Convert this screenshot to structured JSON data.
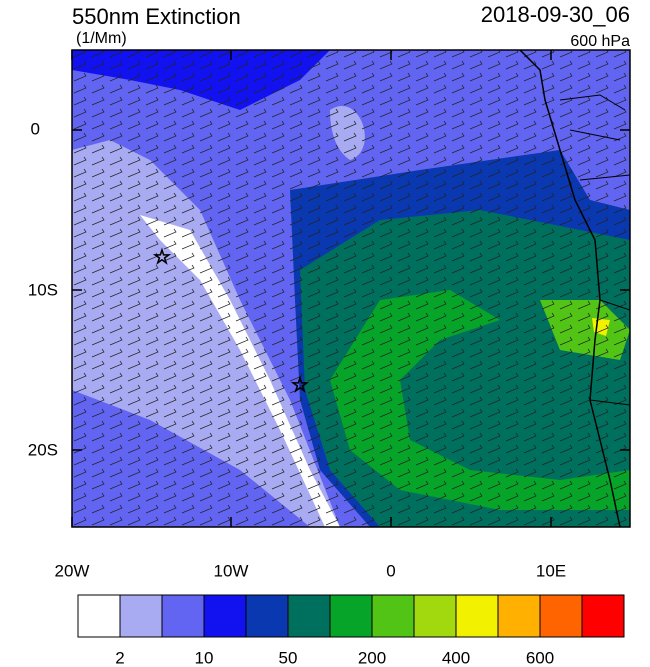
{
  "title": "550nm Extinction",
  "units": "(1/Mm)",
  "date": "2018-09-30_06",
  "level": "600 hPa",
  "map": {
    "lon_labels": [
      "20W",
      "10W",
      "0",
      "10E"
    ],
    "lat_labels": [
      "0",
      "10S",
      "20S"
    ]
  },
  "colorbar": {
    "colors": [
      "#ffffff",
      "#a8aaf2",
      "#6264f2",
      "#1212f0",
      "#0a38b0",
      "#00705e",
      "#06a428",
      "#52c416",
      "#a2d80e",
      "#f2f200",
      "#ffb000",
      "#ff6400",
      "#ff0000"
    ],
    "labels": [
      "2",
      "10",
      "50",
      "200",
      "400",
      "600"
    ]
  }
}
